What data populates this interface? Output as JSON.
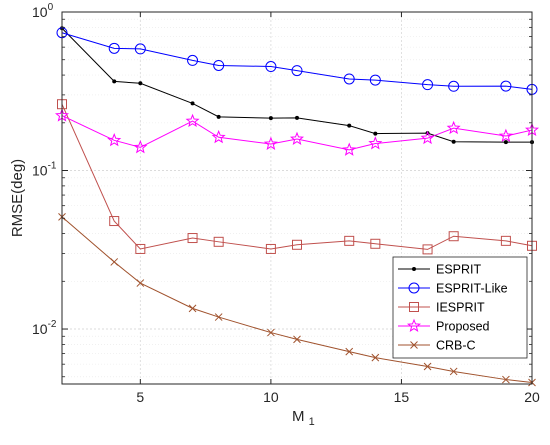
{
  "chart_data": {
    "type": "line",
    "title": "",
    "xlabel": "M",
    "xlabel_subscript": "1",
    "ylabel": "RMSE(deg)",
    "yscale": "log",
    "xlim": [
      2,
      20
    ],
    "ylim": [
      0.0045,
      1
    ],
    "grid": true,
    "legend_position": "lower-right",
    "x_ticks": [
      5,
      10,
      15,
      20
    ],
    "x_tick_labels": [
      "5",
      "10",
      "15",
      "20"
    ],
    "y_ticks": [
      0.01,
      0.1,
      1
    ],
    "y_tick_labels": [
      {
        "base": "10",
        "exp": "-2"
      },
      {
        "base": "10",
        "exp": "-1"
      },
      {
        "base": "10",
        "exp": "0"
      }
    ],
    "series": [
      {
        "name": "ESPRIT",
        "color": "#000000",
        "marker": "dot",
        "x": [
          2,
          4,
          5,
          7,
          8,
          10,
          11,
          13,
          14,
          16,
          17,
          19,
          20
        ],
        "y": [
          0.79,
          0.365,
          0.355,
          0.265,
          0.218,
          0.214,
          0.215,
          0.192,
          0.171,
          0.172,
          0.152,
          0.151,
          0.151
        ]
      },
      {
        "name": "ESPRIT-Like",
        "color": "#0000ff",
        "marker": "circle",
        "x": [
          2,
          4,
          5,
          7,
          8,
          10,
          11,
          13,
          14,
          16,
          17,
          19,
          20
        ],
        "y": [
          0.74,
          0.59,
          0.585,
          0.495,
          0.46,
          0.453,
          0.427,
          0.378,
          0.372,
          0.348,
          0.34,
          0.341,
          0.325
        ]
      },
      {
        "name": "IESPRIT",
        "color": "#c0504d",
        "marker": "square",
        "x": [
          2,
          4,
          5,
          7,
          8,
          10,
          11,
          13,
          14,
          16,
          17,
          19,
          20
        ],
        "y": [
          0.262,
          0.048,
          0.032,
          0.0375,
          0.0355,
          0.032,
          0.034,
          0.036,
          0.0345,
          0.0318,
          0.0385,
          0.036,
          0.0335
        ]
      },
      {
        "name": "Proposed",
        "color": "#ff00ff",
        "marker": "star",
        "x": [
          2,
          4,
          5,
          7,
          8,
          10,
          11,
          13,
          14,
          16,
          17,
          19,
          20
        ],
        "y": [
          0.222,
          0.155,
          0.14,
          0.205,
          0.162,
          0.147,
          0.158,
          0.135,
          0.148,
          0.16,
          0.185,
          0.165,
          0.18
        ]
      },
      {
        "name": "CRB-C",
        "color": "#a0522d",
        "marker": "x",
        "x": [
          2,
          4,
          5,
          7,
          8,
          10,
          11,
          13,
          14,
          16,
          17,
          19,
          20
        ],
        "y": [
          0.051,
          0.0265,
          0.0195,
          0.0135,
          0.0119,
          0.0095,
          0.0086,
          0.0072,
          0.0066,
          0.0058,
          0.0054,
          0.0048,
          0.0046
        ]
      }
    ]
  }
}
